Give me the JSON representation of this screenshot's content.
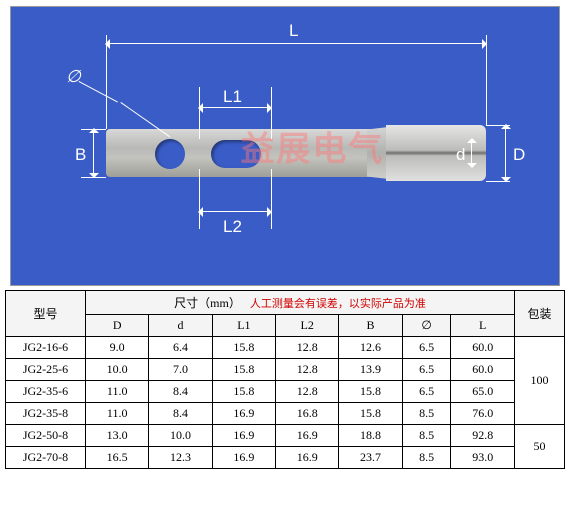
{
  "diagram": {
    "background_color": "#3a5cc7",
    "watermark": "益展电气",
    "labels": {
      "L": "L",
      "L1": "L1",
      "L2": "L2",
      "B": "B",
      "phi": "∅",
      "d": "d",
      "D": "D"
    }
  },
  "table": {
    "header_model": "型号",
    "header_size": "尺寸（mm）",
    "header_note": "人工测量会有误差，以实际产品为准",
    "header_pack": "包装",
    "columns": [
      "D",
      "d",
      "L1",
      "L2",
      "B",
      "∅",
      "L"
    ],
    "rows": [
      {
        "model": "JG2-16-6",
        "D": "9.0",
        "d": "6.4",
        "L1": "15.8",
        "L2": "12.8",
        "B": "12.6",
        "phi": "6.5",
        "L": "60.0"
      },
      {
        "model": "JG2-25-6",
        "D": "10.0",
        "d": "7.0",
        "L1": "15.8",
        "L2": "12.8",
        "B": "13.9",
        "phi": "6.5",
        "L": "60.0"
      },
      {
        "model": "JG2-35-6",
        "D": "11.0",
        "d": "8.4",
        "L1": "15.8",
        "L2": "12.8",
        "B": "15.8",
        "phi": "6.5",
        "L": "65.0"
      },
      {
        "model": "JG2-35-8",
        "D": "11.0",
        "d": "8.4",
        "L1": "16.9",
        "L2": "16.8",
        "B": "15.8",
        "phi": "8.5",
        "L": "76.0"
      },
      {
        "model": "JG2-50-8",
        "D": "13.0",
        "d": "10.0",
        "L1": "16.9",
        "L2": "16.9",
        "B": "18.8",
        "phi": "8.5",
        "L": "92.8"
      },
      {
        "model": "JG2-70-8",
        "D": "16.5",
        "d": "12.3",
        "L1": "16.9",
        "L2": "16.9",
        "B": "23.7",
        "phi": "8.5",
        "L": "93.0"
      }
    ],
    "pack_groups": [
      {
        "span": 4,
        "value": "100"
      },
      {
        "span": 2,
        "value": "50"
      }
    ]
  }
}
